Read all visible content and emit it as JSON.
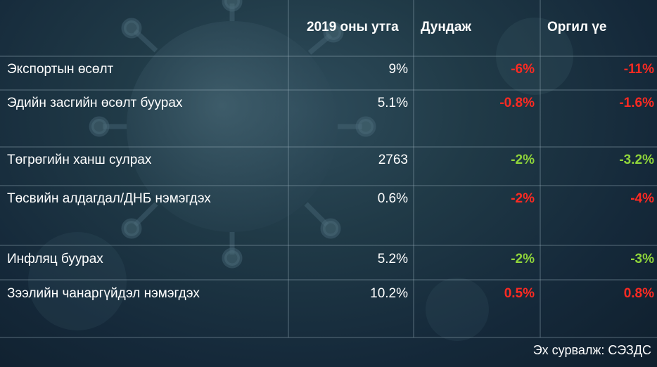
{
  "table": {
    "headers": {
      "value_2019": "2019 оны утга",
      "average": "Дундаж",
      "peak": "Оргил үе"
    },
    "rows": [
      {
        "label": "Экспортын өсөлт",
        "value_2019": "9%",
        "average": "-6%",
        "peak": "-11%",
        "avg_tone": "negative",
        "peak_tone": "negative"
      },
      {
        "label": "Эдийн засгийн өсөлт буурах",
        "value_2019": "5.1%",
        "average": "-0.8%",
        "peak": "-1.6%",
        "avg_tone": "negative",
        "peak_tone": "negative"
      },
      {
        "label": "Төгрөгийн ханш сулрах",
        "value_2019": "2763",
        "average": "-2%",
        "peak": "-3.2%",
        "avg_tone": "positive",
        "peak_tone": "positive"
      },
      {
        "label": "Төсвийн алдагдал/ДНБ нэмэгдэх",
        "value_2019": "0.6%",
        "average": "-2%",
        "peak": "-4%",
        "avg_tone": "negative",
        "peak_tone": "negative"
      },
      {
        "label": "Инфляц буурах",
        "value_2019": "5.2%",
        "average": "-2%",
        "peak": "-3%",
        "avg_tone": "positive",
        "peak_tone": "positive"
      },
      {
        "label": "Зээлийн чанаргүйдэл нэмэгдэх",
        "value_2019": "10.2%",
        "average": "0.5%",
        "peak": "0.8%",
        "avg_tone": "negative",
        "peak_tone": "negative"
      }
    ]
  },
  "source": "Эх сурвалж: СЭЗДС",
  "colors": {
    "negative": "#ff2a22",
    "positive": "#8fd43a",
    "background": "#1b3242"
  }
}
